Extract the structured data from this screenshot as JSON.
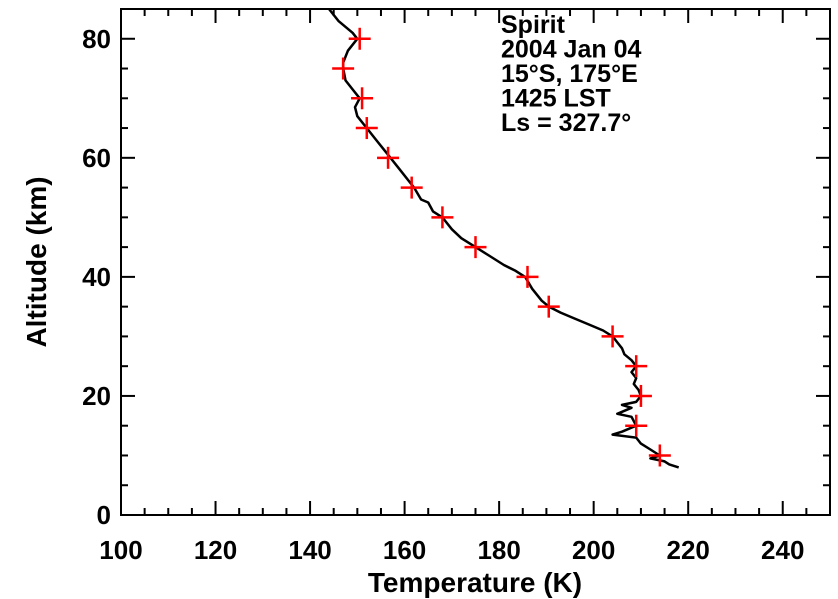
{
  "chart_data": {
    "type": "line",
    "xlabel": "Temperature (K)",
    "ylabel": "Altitude (km)",
    "xlim": [
      100,
      250
    ],
    "ylim": [
      0,
      85
    ],
    "x_ticks": [
      100,
      120,
      140,
      160,
      180,
      200,
      220,
      240
    ],
    "y_ticks": [
      0,
      20,
      40,
      60,
      80
    ],
    "grid": false,
    "annotations": [
      "Spirit",
      "2004 Jan 04",
      "15°S, 175°E",
      "1425 LST",
      "Ls = 327.7°"
    ],
    "series": [
      {
        "style": "line",
        "color": "#000000",
        "points": [
          [
            144,
            85
          ],
          [
            146,
            83
          ],
          [
            149,
            81
          ],
          [
            150,
            80
          ],
          [
            148,
            78
          ],
          [
            147,
            76
          ],
          [
            147,
            75
          ],
          [
            147.5,
            73
          ],
          [
            149,
            71.5
          ],
          [
            150.5,
            70
          ],
          [
            149.5,
            68.5
          ],
          [
            150,
            67
          ],
          [
            151.5,
            65.5
          ],
          [
            152,
            65
          ],
          [
            154,
            63
          ],
          [
            156.5,
            60.5
          ],
          [
            157,
            60
          ],
          [
            159,
            58
          ],
          [
            161.5,
            55.5
          ],
          [
            162,
            55
          ],
          [
            163.5,
            53
          ],
          [
            165,
            52.5
          ],
          [
            166,
            51
          ],
          [
            168,
            50
          ],
          [
            170,
            48
          ],
          [
            172,
            46.5
          ],
          [
            175,
            45
          ],
          [
            178,
            43.5
          ],
          [
            181,
            42
          ],
          [
            183.5,
            41
          ],
          [
            185.5,
            40
          ],
          [
            187,
            38
          ],
          [
            189,
            36
          ],
          [
            190.5,
            35
          ],
          [
            193,
            34
          ],
          [
            196,
            33
          ],
          [
            199,
            32
          ],
          [
            202,
            31
          ],
          [
            204,
            30
          ],
          [
            205,
            29
          ],
          [
            206,
            28
          ],
          [
            206.5,
            27
          ],
          [
            208,
            26
          ],
          [
            209,
            25
          ],
          [
            208,
            24
          ],
          [
            209,
            23
          ],
          [
            208.5,
            22
          ],
          [
            209.5,
            21
          ],
          [
            210,
            20
          ],
          [
            209,
            19
          ],
          [
            206,
            18.5
          ],
          [
            208,
            18
          ],
          [
            205,
            17
          ],
          [
            208,
            16.5
          ],
          [
            209,
            15
          ],
          [
            206,
            14
          ],
          [
            204,
            13.5
          ],
          [
            209,
            13
          ],
          [
            210,
            12
          ],
          [
            212,
            11
          ],
          [
            213,
            10.5
          ],
          [
            214,
            10
          ],
          [
            212,
            9.5
          ],
          [
            215,
            9
          ],
          [
            216,
            8.5
          ],
          [
            218,
            8
          ]
        ]
      },
      {
        "style": "markers",
        "marker": "+",
        "color": "#ff0000",
        "points": [
          [
            150.5,
            80
          ],
          [
            147,
            75
          ],
          [
            151,
            70
          ],
          [
            152,
            65
          ],
          [
            156.5,
            60
          ],
          [
            161.5,
            55
          ],
          [
            168,
            50
          ],
          [
            175,
            45
          ],
          [
            186,
            40
          ],
          [
            190.5,
            35
          ],
          [
            204,
            30
          ],
          [
            209,
            25
          ],
          [
            210,
            20
          ],
          [
            209,
            15
          ],
          [
            214,
            10
          ]
        ]
      }
    ]
  }
}
